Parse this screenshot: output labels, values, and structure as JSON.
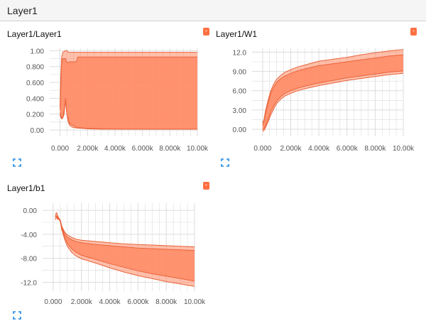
{
  "header": {
    "title": "Layer1"
  },
  "colors": {
    "accent": "#ff7043",
    "fill": "#ff8a65",
    "line": "#e9643b",
    "grid": "#dcdcdc",
    "menu": "#ff7043",
    "expand_icon": "#1e88e5"
  },
  "icons": {
    "menu": "menu-icon",
    "expand": "expand-icon"
  },
  "cards": [
    {
      "title": "Layer1/Layer1",
      "menu_label": "-",
      "chart_data": {
        "type": "area",
        "xlabel": "",
        "ylabel": "",
        "xlim": [
          -750,
          10000
        ],
        "ylim": [
          -0.08,
          1.03
        ],
        "x_ticks": [
          0,
          2000,
          4000,
          6000,
          8000,
          10000
        ],
        "x_tick_labels": [
          "0.000",
          "2.000k",
          "4.000k",
          "6.000k",
          "8.000k",
          "10.00k"
        ],
        "y_ticks": [
          0,
          0.2,
          0.4,
          0.6,
          0.8,
          1.0
        ],
        "y_tick_labels": [
          "0.00",
          "0.200",
          "0.400",
          "0.600",
          "0.800",
          "1.00"
        ],
        "grid": true,
        "band_outer": {
          "x": [
            0,
            60,
            120,
            200,
            300,
            400,
            500,
            600,
            700,
            900,
            1200,
            1600,
            2000,
            3000,
            4000,
            6000,
            8000,
            10000
          ],
          "upper": [
            0.3,
            0.7,
            0.92,
            0.98,
            0.99,
            1.0,
            1.0,
            0.98,
            0.98,
            0.98,
            0.98,
            0.98,
            0.98,
            0.98,
            0.98,
            0.98,
            0.98,
            0.98
          ],
          "lower": [
            0.2,
            0.16,
            0.14,
            0.15,
            0.2,
            0.4,
            0.2,
            0.1,
            0.06,
            0.035,
            0.025,
            0.02,
            0.015,
            0.01,
            0.01,
            0.01,
            0.01,
            0.01
          ]
        },
        "band_inner": {
          "x": [
            0,
            60,
            120,
            200,
            300,
            400,
            500,
            700,
            1200,
            1300,
            2000,
            4000,
            6000,
            8000,
            10000
          ],
          "upper": [
            0.25,
            0.55,
            0.85,
            0.9,
            0.9,
            0.9,
            0.85,
            0.86,
            0.86,
            0.92,
            0.92,
            0.92,
            0.92,
            0.92,
            0.92
          ],
          "lower": [
            0.22,
            0.18,
            0.15,
            0.16,
            0.25,
            0.35,
            0.2,
            0.08,
            0.035,
            0.03,
            0.02,
            0.012,
            0.01,
            0.01,
            0.01
          ]
        }
      }
    },
    {
      "title": "Layer1/W1",
      "menu_label": "-",
      "chart_data": {
        "type": "area",
        "xlabel": "",
        "ylabel": "",
        "xlim": [
          -750,
          10000
        ],
        "ylim": [
          -1.1,
          12.6
        ],
        "x_ticks": [
          0,
          2000,
          4000,
          6000,
          8000,
          10000
        ],
        "x_tick_labels": [
          "0.000",
          "2.000k",
          "4.000k",
          "6.000k",
          "8.000k",
          "10.00k"
        ],
        "y_ticks": [
          0,
          3,
          6,
          9,
          12
        ],
        "y_tick_labels": [
          "0.00",
          "3.00",
          "6.00",
          "9.00",
          "12.0"
        ],
        "grid": true,
        "band_outer": {
          "x": [
            0,
            100,
            200,
            400,
            600,
            800,
            1000,
            1300,
            1600,
            2000,
            2500,
            3000,
            4000,
            5000,
            6000,
            7000,
            8000,
            9000,
            10000
          ],
          "upper": [
            1.0,
            1.5,
            2.8,
            4.6,
            6.1,
            7.1,
            7.8,
            8.4,
            8.9,
            9.3,
            9.7,
            10.0,
            10.6,
            10.9,
            11.2,
            11.6,
            11.9,
            12.2,
            12.4
          ],
          "lower": [
            -0.3,
            -0.2,
            0.2,
            1.2,
            2.3,
            3.2,
            4.0,
            4.7,
            5.2,
            5.6,
            6.0,
            6.3,
            6.8,
            7.2,
            7.6,
            7.9,
            8.2,
            8.5,
            8.7
          ]
        },
        "band_inner": {
          "x": [
            0,
            100,
            200,
            400,
            600,
            800,
            1000,
            1300,
            1600,
            2000,
            2500,
            3000,
            4000,
            5000,
            6000,
            7000,
            8000,
            9000,
            10000
          ],
          "upper": [
            0.6,
            1.2,
            2.4,
            4.2,
            5.7,
            6.6,
            7.3,
            7.9,
            8.3,
            8.7,
            9.1,
            9.4,
            9.9,
            10.2,
            10.5,
            10.8,
            11.1,
            11.4,
            11.6
          ],
          "lower": [
            -0.1,
            0.1,
            0.5,
            1.6,
            2.8,
            3.7,
            4.4,
            5.1,
            5.6,
            6.0,
            6.4,
            6.7,
            7.2,
            7.6,
            8.0,
            8.3,
            8.6,
            8.9,
            9.1
          ]
        }
      }
    },
    {
      "title": "Layer1/b1",
      "menu_label": "-",
      "chart_data": {
        "type": "area",
        "xlabel": "",
        "ylabel": "",
        "xlim": [
          -750,
          10000
        ],
        "ylim": [
          -13.5,
          1.2
        ],
        "x_ticks": [
          0,
          2000,
          4000,
          6000,
          8000,
          10000
        ],
        "x_tick_labels": [
          "0.000",
          "2.000k",
          "4.000k",
          "6.000k",
          "8.000k",
          "10.00k"
        ],
        "y_ticks": [
          0,
          -4,
          -8,
          -12
        ],
        "y_tick_labels": [
          "0.00",
          "-4.00",
          "-8.00",
          "-12.0"
        ],
        "grid": true,
        "band_outer": {
          "x": [
            150,
            200,
            250,
            300,
            400,
            500,
            600,
            800,
            1000,
            1300,
            1600,
            2000,
            3000,
            4000,
            5000,
            6000,
            7000,
            8000,
            9000,
            10000
          ],
          "upper": [
            -1.2,
            -0.5,
            -0.4,
            -0.8,
            -1.3,
            -1.6,
            -2.6,
            -3.6,
            -4.1,
            -4.5,
            -4.8,
            -5.0,
            -5.2,
            -5.4,
            -5.6,
            -5.7,
            -5.8,
            -5.9,
            -6.0,
            -6.1
          ],
          "lower": [
            -1.6,
            -1.3,
            -1.0,
            -1.5,
            -1.4,
            -1.8,
            -3.2,
            -4.8,
            -6.0,
            -7.0,
            -7.6,
            -8.1,
            -8.8,
            -9.6,
            -10.3,
            -10.9,
            -11.4,
            -11.9,
            -12.3,
            -12.7
          ]
        },
        "band_inner": {
          "x": [
            200,
            300,
            400,
            500,
            600,
            800,
            1000,
            1300,
            1600,
            2000,
            3000,
            4000,
            5000,
            6000,
            7000,
            8000,
            9000,
            10000
          ],
          "upper": [
            -0.9,
            -1.1,
            -1.4,
            -1.7,
            -2.8,
            -3.9,
            -4.5,
            -4.9,
            -5.2,
            -5.4,
            -5.7,
            -5.9,
            -6.1,
            -6.3,
            -6.4,
            -6.5,
            -6.6,
            -6.7
          ],
          "lower": [
            -1.1,
            -1.3,
            -1.5,
            -1.9,
            -3.0,
            -4.4,
            -5.5,
            -6.4,
            -7.0,
            -7.5,
            -8.2,
            -8.9,
            -9.5,
            -10.1,
            -10.6,
            -11.0,
            -11.4,
            -11.8
          ]
        }
      }
    }
  ]
}
